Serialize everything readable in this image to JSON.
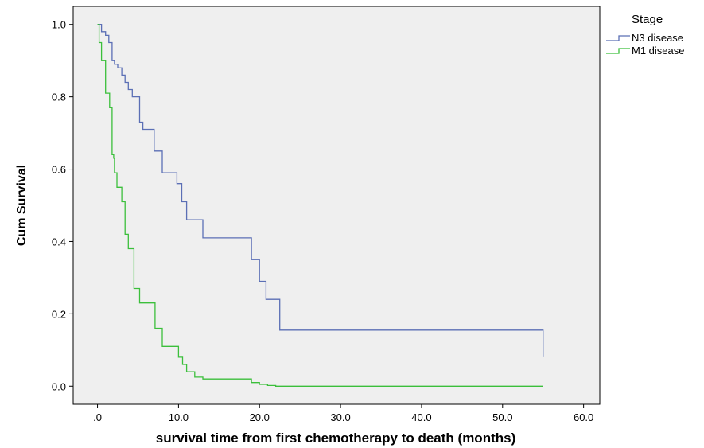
{
  "chart_data": {
    "type": "line",
    "step": true,
    "xlabel": "survival time from first chemotherapy to death (months)",
    "ylabel": "Cum Survival",
    "xlim": [
      -3,
      62
    ],
    "ylim": [
      -0.05,
      1.05
    ],
    "x_ticks": [
      0,
      10,
      20,
      30,
      40,
      50,
      60
    ],
    "x_tick_labels": [
      ".0",
      "10.0",
      "20.0",
      "30.0",
      "40.0",
      "50.0",
      "60.0"
    ],
    "y_ticks": [
      0,
      0.2,
      0.4,
      0.6,
      0.8,
      1.0
    ],
    "y_tick_labels": [
      "0.0",
      "0.2",
      "0.4",
      "0.6",
      "0.8",
      "1.0"
    ],
    "grid": false,
    "background": "#efefef",
    "legend": {
      "title": "Stage",
      "position": "top-right-outside"
    },
    "series": [
      {
        "name": "N3 disease",
        "color": "#5b6fb5",
        "x": [
          0,
          0.5,
          1.0,
          1.4,
          1.8,
          2.1,
          2.5,
          3.0,
          3.4,
          3.8,
          4.3,
          5.2,
          5.6,
          7.0,
          8.0,
          9.8,
          10.4,
          11.0,
          13.0,
          19.0,
          20.0,
          20.8,
          21.6,
          22.5,
          55.0
        ],
        "y": [
          1.0,
          0.98,
          0.97,
          0.95,
          0.9,
          0.89,
          0.88,
          0.86,
          0.84,
          0.82,
          0.8,
          0.73,
          0.71,
          0.65,
          0.59,
          0.56,
          0.51,
          0.46,
          0.41,
          0.35,
          0.29,
          0.24,
          0.24,
          0.155,
          0.08
        ],
        "censor_end": 55.0
      },
      {
        "name": "M1 disease",
        "color": "#3bbf3b",
        "x": [
          0,
          0.2,
          0.5,
          1.0,
          1.5,
          1.8,
          2.0,
          2.1,
          2.4,
          3.0,
          3.4,
          3.8,
          4.5,
          5.2,
          5.6,
          7.1,
          8.0,
          10.0,
          10.5,
          11.0,
          12.0,
          13.0,
          19.0,
          20.0,
          21.0,
          22.0,
          55.0
        ],
        "y": [
          1.0,
          0.95,
          0.9,
          0.81,
          0.77,
          0.64,
          0.63,
          0.59,
          0.55,
          0.51,
          0.42,
          0.38,
          0.27,
          0.23,
          0.23,
          0.16,
          0.11,
          0.08,
          0.06,
          0.04,
          0.025,
          0.02,
          0.01,
          0.005,
          0.002,
          0.0,
          0.0
        ],
        "censor_end": 55.0
      }
    ]
  }
}
